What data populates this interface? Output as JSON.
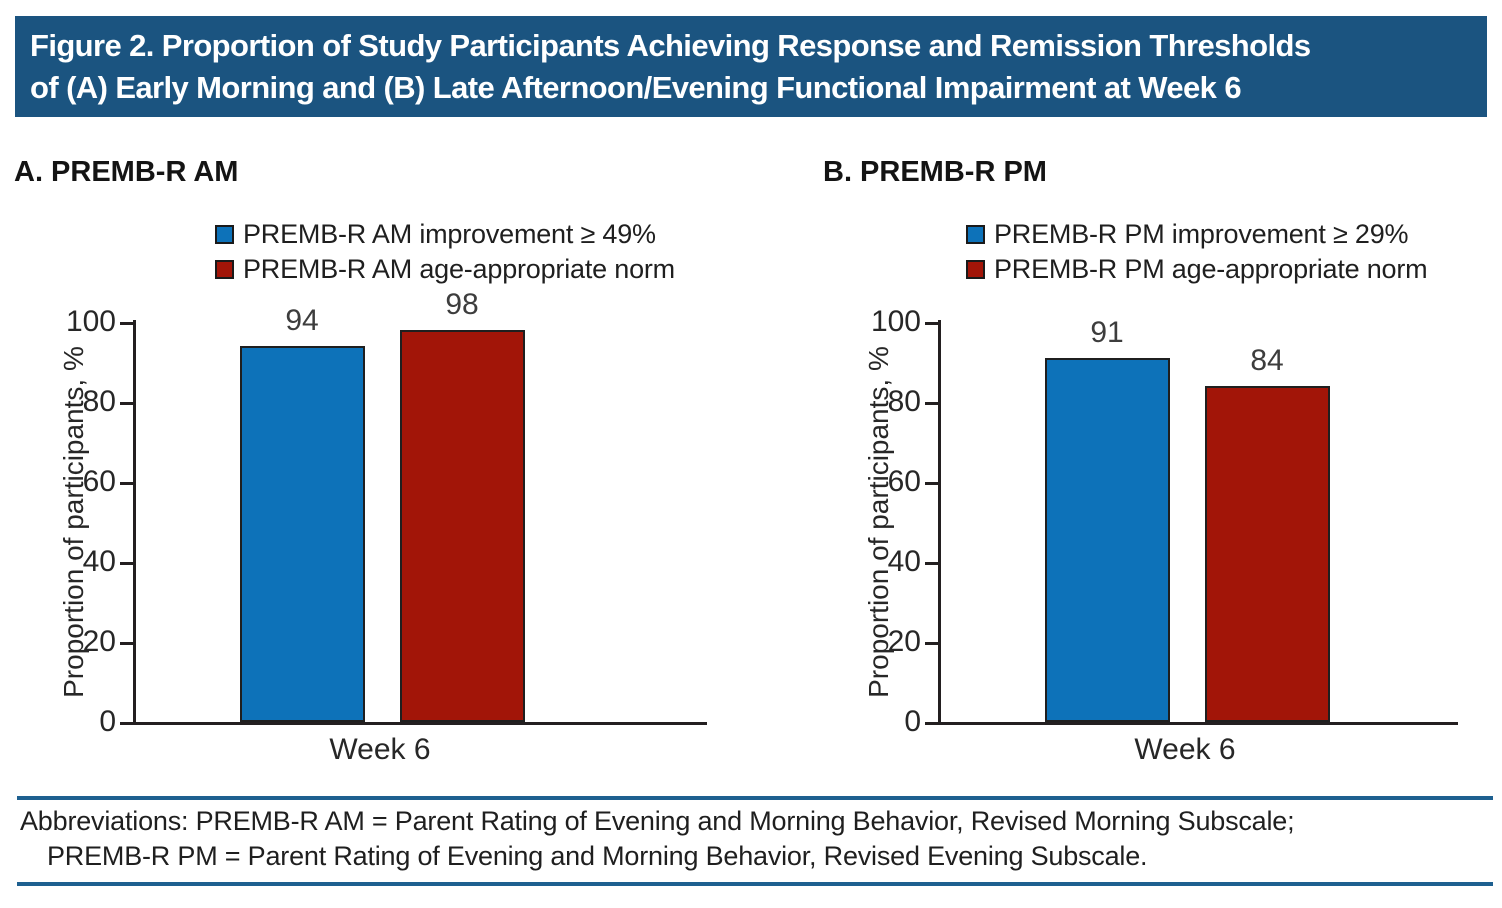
{
  "figure_header": {
    "line1": "Figure 2. Proportion of Study Participants Achieving Response and Remission Thresholds",
    "line2": "of (A) Early Morning and (B) Late Afternoon/Evening Functional Impairment at Week 6"
  },
  "colors": {
    "header_bg": "#1b5480",
    "rule_blue": "#1e6090",
    "bar_blue": "#0d72b9",
    "bar_red": "#a21508",
    "axis_black": "#231f20"
  },
  "panels": [
    {
      "label": "A. PREMB-R AM",
      "legend": [
        {
          "label": "PREMB-R AM improvement ≥ 49%"
        },
        {
          "label": "PREMB-R AM age-appropriate norm"
        }
      ],
      "ylabel": "Proportion of participants, %",
      "yticks": [
        "0",
        "20",
        "40",
        "60",
        "80",
        "100"
      ],
      "xlabel": "Week 6"
    },
    {
      "label": "B. PREMB-R PM",
      "legend": [
        {
          "label": "PREMB-R PM improvement ≥ 29%"
        },
        {
          "label": "PREMB-R PM age-appropriate norm"
        }
      ],
      "ylabel": "Proportion of participants, %",
      "yticks": [
        "0",
        "20",
        "40",
        "60",
        "80",
        "100"
      ],
      "xlabel": "Week 6"
    }
  ],
  "chart_data": [
    {
      "type": "bar",
      "panel": "A",
      "title": "A. PREMB-R AM",
      "categories": [
        "Week 6"
      ],
      "series": [
        {
          "name": "PREMB-R AM improvement ≥ 49%",
          "values": [
            94
          ],
          "color": "#0d72b9"
        },
        {
          "name": "PREMB-R AM age-appropriate norm",
          "values": [
            98
          ],
          "color": "#a21508"
        }
      ],
      "xlabel": "",
      "ylabel": "Proportion of participants, %",
      "ylim": [
        0,
        100
      ],
      "yticks": [
        0,
        20,
        40,
        60,
        80,
        100
      ],
      "grid": false,
      "legend_position": "top"
    },
    {
      "type": "bar",
      "panel": "B",
      "title": "B. PREMB-R PM",
      "categories": [
        "Week 6"
      ],
      "series": [
        {
          "name": "PREMB-R PM improvement ≥ 29%",
          "values": [
            91
          ],
          "color": "#0d72b9"
        },
        {
          "name": "PREMB-R PM age-appropriate norm",
          "values": [
            84
          ],
          "color": "#a21508"
        }
      ],
      "xlabel": "",
      "ylabel": "Proportion of participants, %",
      "ylim": [
        0,
        100
      ],
      "yticks": [
        0,
        20,
        40,
        60,
        80,
        100
      ],
      "grid": false,
      "legend_position": "top"
    }
  ],
  "footnote": {
    "line1": "Abbreviations: PREMB-R AM = Parent Rating of Evening and Morning Behavior, Revised Morning Subscale;",
    "line2": "PREMB-R PM =  Parent Rating of Evening and Morning Behavior, Revised Evening Subscale."
  }
}
